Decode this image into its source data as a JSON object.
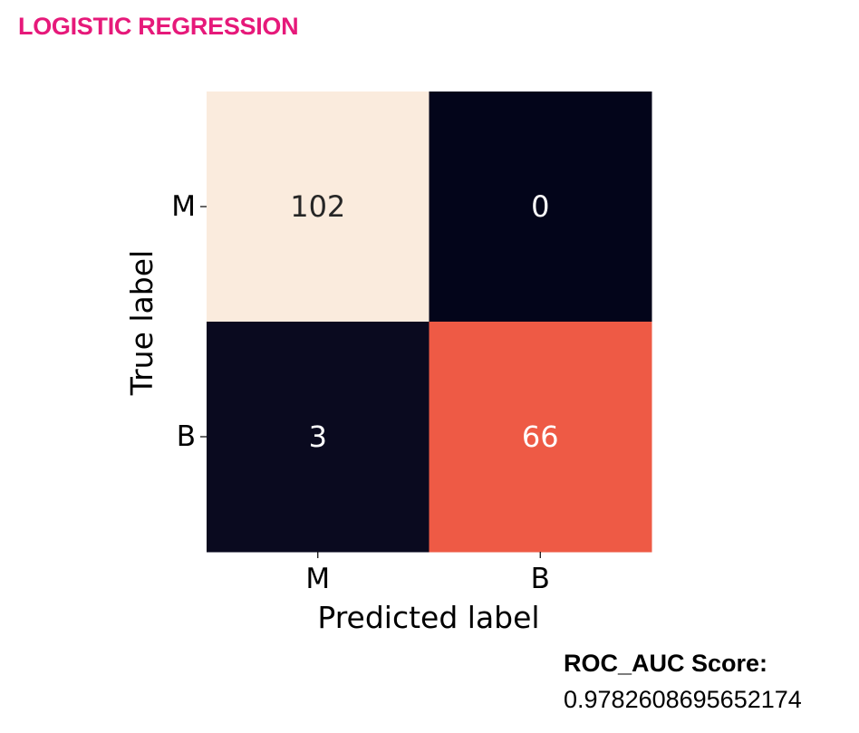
{
  "page": {
    "title": "LOGISTIC REGRESSION",
    "title_color": "#e6197a"
  },
  "score": {
    "label": "ROC_AUC Score:",
    "value": "0.9782608695652174"
  },
  "chart_data": {
    "type": "heatmap",
    "title": "",
    "xlabel": "Predicted label",
    "ylabel": "True label",
    "x_categories": [
      "M",
      "B"
    ],
    "y_categories": [
      "M",
      "B"
    ],
    "values": [
      [
        102,
        0
      ],
      [
        3,
        66
      ]
    ],
    "colormap": "rocket",
    "colorbar": false,
    "cell_colors": [
      [
        "#faebdd",
        "#03051a"
      ],
      [
        "#0a0a1f",
        "#ee5a45"
      ]
    ],
    "text_colors": [
      [
        "#262626",
        "#ffffff"
      ],
      [
        "#ffffff",
        "#ffffff"
      ]
    ]
  }
}
